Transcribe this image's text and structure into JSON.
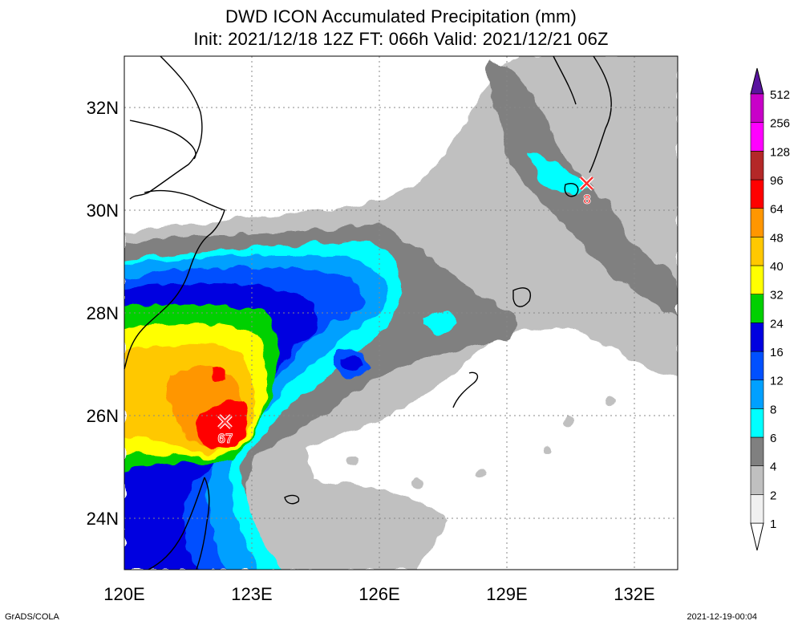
{
  "title": {
    "line1": "DWD ICON Accumulated Precipitation (mm)",
    "line2": "Init: 2021/12/18 12Z  FT: 066h  Valid: 2021/12/21 06Z"
  },
  "axes": {
    "x_ticks": [
      "120E",
      "123E",
      "126E",
      "129E",
      "132E"
    ],
    "y_ticks": [
      "32N",
      "30N",
      "28N",
      "26N",
      "24N"
    ],
    "lon_range": [
      120,
      133
    ],
    "lat_range": [
      23,
      33
    ]
  },
  "legend": {
    "levels": [
      "1",
      "2",
      "4",
      "6",
      "8",
      "12",
      "16",
      "24",
      "32",
      "40",
      "48",
      "64",
      "96",
      "128",
      "256",
      "512"
    ],
    "colors": [
      "#f0f0f0",
      "#c0c0c0",
      "#808080",
      "#00ffff",
      "#00a0ff",
      "#0050ff",
      "#0000e0",
      "#00d000",
      "#ffff00",
      "#ffc800",
      "#ff9600",
      "#ff0000",
      "#b42828",
      "#ff00ff",
      "#c800c8",
      "#9600c8",
      "#5a14a0"
    ]
  },
  "markers": [
    {
      "value": "67",
      "lon": 122.3,
      "lat": 25.9
    },
    {
      "value": "8",
      "lon": 130.9,
      "lat": 30.5
    }
  ],
  "credits": {
    "left": "GrADS/COLA",
    "right": "2021-12-19-00:04"
  }
}
